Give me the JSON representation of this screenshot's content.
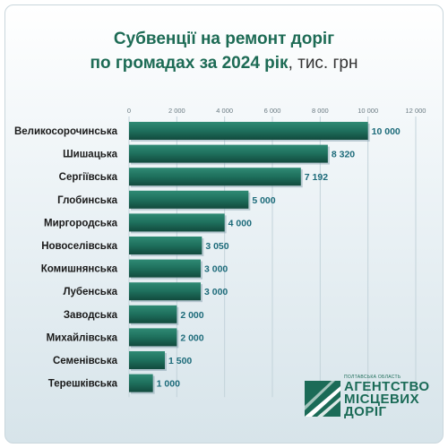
{
  "title": {
    "line1": "Субвенції на ремонт доріг",
    "line2": "по громадах за 2024 рік",
    "unit": ", тис. грн"
  },
  "chart_data": {
    "type": "bar",
    "orientation": "horizontal",
    "categories": [
      "Великосорочинська",
      "Шишацька",
      "Сергіївська",
      "Глобинська",
      "Миргородська",
      "Новоселівська",
      "Комишнянська",
      "Лубенська",
      "Заводська",
      "Михайлівська",
      "Семенівська",
      "Терешківська"
    ],
    "values": [
      10000,
      8320,
      7192,
      5000,
      4000,
      3050,
      3000,
      3000,
      2000,
      2000,
      1500,
      1000
    ],
    "value_labels": [
      "10 000",
      "8 320",
      "7 192",
      "5 000",
      "4 000",
      "3 050",
      "3 000",
      "3 000",
      "2 000",
      "2 000",
      "1 500",
      "1 000"
    ],
    "xlim": [
      0,
      12000
    ],
    "ticks": [
      0,
      2000,
      4000,
      6000,
      8000,
      10000,
      12000
    ],
    "tick_labels": [
      "0",
      "2 000",
      "4 000",
      "6 000",
      "8 000",
      "10 000",
      "12 000"
    ],
    "xlabel": "",
    "ylabel": "",
    "grid": true,
    "bar_color": "#1e6f5c"
  },
  "logo": {
    "region": "ПОЛТАВСЬКА ОБЛАСТЬ",
    "line1": "АГЕНТСТВО",
    "line2": "МІСЦЕВИХ",
    "line3": "ДОРІГ",
    "color": "#1b6b57"
  }
}
